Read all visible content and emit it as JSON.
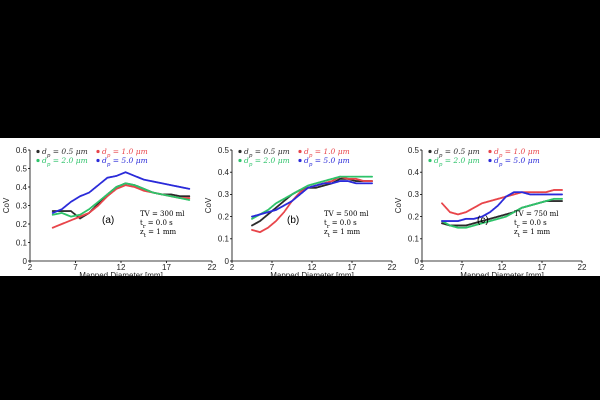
{
  "colors": {
    "black": "#2b2b2b",
    "red": "#e8454a",
    "green": "#2ec36a",
    "blue": "#2a2ad9"
  },
  "chart_data": [
    {
      "type": "scatter",
      "tag": "(a)",
      "xlabel": "Mapped Diameter [mm]",
      "ylabel": "CoV",
      "xlim": [
        2,
        22
      ],
      "ylim": [
        0,
        0.6
      ],
      "xticks": [
        "2",
        "7",
        "12",
        "17",
        "22"
      ],
      "yticks": [
        "0",
        "0.1",
        "0.2",
        "0.3",
        "0.4",
        "0.5",
        "0.6"
      ],
      "legend": [
        "d_p = 0.5 μm",
        "d_p = 1.0 μm",
        "d_p = 2.0 μm",
        "d_p = 5.0 μm"
      ],
      "annotation": [
        "TV = 300 ml",
        "t_r = 0.0 s",
        "z_t = 1 mm"
      ],
      "series": [
        {
          "name": "d_p = 0.5 μm",
          "color": "black",
          "x": [
            4.5,
            5.5,
            6.5,
            7.5,
            8.5,
            9.5,
            10.5,
            11.5,
            12.5,
            13.5,
            14.5,
            15.5,
            16.5,
            17.5,
            18.5,
            19.5
          ],
          "y": [
            0.27,
            0.27,
            0.27,
            0.23,
            0.26,
            0.31,
            0.36,
            0.4,
            0.42,
            0.41,
            0.39,
            0.37,
            0.36,
            0.36,
            0.35,
            0.35
          ]
        },
        {
          "name": "d_p = 1.0 μm",
          "color": "red",
          "x": [
            4.5,
            5.5,
            6.5,
            7.5,
            8.5,
            9.5,
            10.5,
            11.5,
            12.5,
            13.5,
            14.5,
            15.5,
            16.5,
            17.5,
            18.5,
            19.5
          ],
          "y": [
            0.18,
            0.2,
            0.22,
            0.24,
            0.26,
            0.3,
            0.35,
            0.39,
            0.41,
            0.4,
            0.38,
            0.37,
            0.36,
            0.35,
            0.34,
            0.34
          ]
        },
        {
          "name": "d_p = 2.0 μm",
          "color": "green",
          "x": [
            4.5,
            5.5,
            6.5,
            7.5,
            8.5,
            9.5,
            10.5,
            11.5,
            12.5,
            13.5,
            14.5,
            15.5,
            16.5,
            17.5,
            18.5,
            19.5
          ],
          "y": [
            0.25,
            0.26,
            0.24,
            0.25,
            0.28,
            0.32,
            0.36,
            0.4,
            0.42,
            0.41,
            0.39,
            0.37,
            0.36,
            0.35,
            0.34,
            0.33
          ]
        },
        {
          "name": "d_p = 5.0 μm",
          "color": "blue",
          "x": [
            4.5,
            5.5,
            6.5,
            7.5,
            8.5,
            9.5,
            10.5,
            11.5,
            12.5,
            13.5,
            14.5,
            15.5,
            16.5,
            17.5,
            18.5,
            19.5
          ],
          "y": [
            0.26,
            0.28,
            0.32,
            0.35,
            0.37,
            0.41,
            0.45,
            0.46,
            0.48,
            0.46,
            0.44,
            0.43,
            0.42,
            0.41,
            0.4,
            0.39
          ]
        }
      ]
    },
    {
      "type": "scatter",
      "tag": "(b)",
      "xlabel": "Mapped Diameter [mm]",
      "ylabel": "CoV",
      "xlim": [
        2,
        22
      ],
      "ylim": [
        0,
        0.5
      ],
      "xticks": [
        "2",
        "7",
        "12",
        "17",
        "22"
      ],
      "yticks": [
        "0",
        "0.1",
        "0.2",
        "0.3",
        "0.4",
        "0.5"
      ],
      "legend": [
        "d_p = 0.5 μm",
        "d_p = 1.0 μm",
        "d_p = 2.0 μm",
        "d_p = 5.0 μm"
      ],
      "annotation": [
        "TV = 500 ml",
        "t_r = 0.0 s",
        "z_t = 1 mm"
      ],
      "series": [
        {
          "name": "d_p = 0.5 μm",
          "color": "black",
          "x": [
            4.5,
            5.5,
            6.5,
            7.5,
            8.5,
            9.5,
            10.5,
            11.5,
            12.5,
            13.5,
            14.5,
            15.5,
            16.5,
            17.5,
            18.5,
            19.5
          ],
          "y": [
            0.16,
            0.18,
            0.21,
            0.24,
            0.27,
            0.3,
            0.32,
            0.33,
            0.33,
            0.34,
            0.35,
            0.37,
            0.37,
            0.36,
            0.36,
            0.36
          ]
        },
        {
          "name": "d_p = 1.0 μm",
          "color": "red",
          "x": [
            4.5,
            5.5,
            6.5,
            7.5,
            8.5,
            9.5,
            10.5,
            11.5,
            12.5,
            13.5,
            14.5,
            15.5,
            16.5,
            17.5,
            18.5,
            19.5
          ],
          "y": [
            0.14,
            0.13,
            0.15,
            0.18,
            0.22,
            0.27,
            0.31,
            0.33,
            0.34,
            0.35,
            0.36,
            0.38,
            0.37,
            0.37,
            0.36,
            0.36
          ]
        },
        {
          "name": "d_p = 2.0 μm",
          "color": "green",
          "x": [
            4.5,
            5.5,
            6.5,
            7.5,
            8.5,
            9.5,
            10.5,
            11.5,
            12.5,
            13.5,
            14.5,
            15.5,
            16.5,
            17.5,
            18.5,
            19.5
          ],
          "y": [
            0.19,
            0.21,
            0.23,
            0.26,
            0.28,
            0.3,
            0.32,
            0.34,
            0.35,
            0.36,
            0.37,
            0.38,
            0.38,
            0.38,
            0.38,
            0.38
          ]
        },
        {
          "name": "d_p = 5.0 μm",
          "color": "blue",
          "x": [
            4.5,
            5.5,
            6.5,
            7.5,
            8.5,
            9.5,
            10.5,
            11.5,
            12.5,
            13.5,
            14.5,
            15.5,
            16.5,
            17.5,
            18.5,
            19.5
          ],
          "y": [
            0.2,
            0.21,
            0.22,
            0.23,
            0.25,
            0.27,
            0.3,
            0.33,
            0.34,
            0.35,
            0.35,
            0.36,
            0.36,
            0.35,
            0.35,
            0.35
          ]
        }
      ]
    },
    {
      "type": "scatter",
      "tag": "(c)",
      "xlabel": "Mapped Diameter [mm]",
      "ylabel": "CoV",
      "xlim": [
        2,
        22
      ],
      "ylim": [
        0,
        0.5
      ],
      "xticks": [
        "2",
        "7",
        "12",
        "17",
        "22"
      ],
      "yticks": [
        "0",
        "0.1",
        "0.2",
        "0.3",
        "0.4",
        "0.5"
      ],
      "legend": [
        "d_p = 0.5 μm",
        "d_p = 1.0 μm",
        "d_p = 2.0 μm",
        "d_p = 5.0 μm"
      ],
      "annotation": [
        "TV = 750 ml",
        "t_r = 0.0 s",
        "z_t = 1 mm"
      ],
      "series": [
        {
          "name": "d_p = 0.5 μm",
          "color": "black",
          "x": [
            4.5,
            5.5,
            6.5,
            7.5,
            8.5,
            9.5,
            10.5,
            11.5,
            12.5,
            13.5,
            14.5,
            15.5,
            16.5,
            17.5,
            18.5,
            19.5
          ],
          "y": [
            0.17,
            0.16,
            0.16,
            0.16,
            0.17,
            0.18,
            0.19,
            0.2,
            0.21,
            0.22,
            0.24,
            0.25,
            0.26,
            0.27,
            0.27,
            0.27
          ]
        },
        {
          "name": "d_p = 1.0 μm",
          "color": "red",
          "x": [
            4.5,
            5.5,
            6.5,
            7.5,
            8.5,
            9.5,
            10.5,
            11.5,
            12.5,
            13.5,
            14.5,
            15.5,
            16.5,
            17.5,
            18.5,
            19.5
          ],
          "y": [
            0.26,
            0.22,
            0.21,
            0.22,
            0.24,
            0.26,
            0.27,
            0.28,
            0.29,
            0.3,
            0.31,
            0.31,
            0.31,
            0.31,
            0.32,
            0.32
          ]
        },
        {
          "name": "d_p = 2.0 μm",
          "color": "green",
          "x": [
            4.5,
            5.5,
            6.5,
            7.5,
            8.5,
            9.5,
            10.5,
            11.5,
            12.5,
            13.5,
            14.5,
            15.5,
            16.5,
            17.5,
            18.5,
            19.5
          ],
          "y": [
            0.18,
            0.16,
            0.15,
            0.15,
            0.16,
            0.17,
            0.18,
            0.19,
            0.2,
            0.22,
            0.24,
            0.25,
            0.26,
            0.27,
            0.28,
            0.28
          ]
        },
        {
          "name": "d_p = 5.0 μm",
          "color": "blue",
          "x": [
            4.5,
            5.5,
            6.5,
            7.5,
            8.5,
            9.5,
            10.5,
            11.5,
            12.5,
            13.5,
            14.5,
            15.5,
            16.5,
            17.5,
            18.5,
            19.5
          ],
          "y": [
            0.18,
            0.18,
            0.18,
            0.19,
            0.19,
            0.2,
            0.22,
            0.25,
            0.29,
            0.31,
            0.31,
            0.3,
            0.3,
            0.3,
            0.3,
            0.3
          ]
        }
      ]
    }
  ]
}
